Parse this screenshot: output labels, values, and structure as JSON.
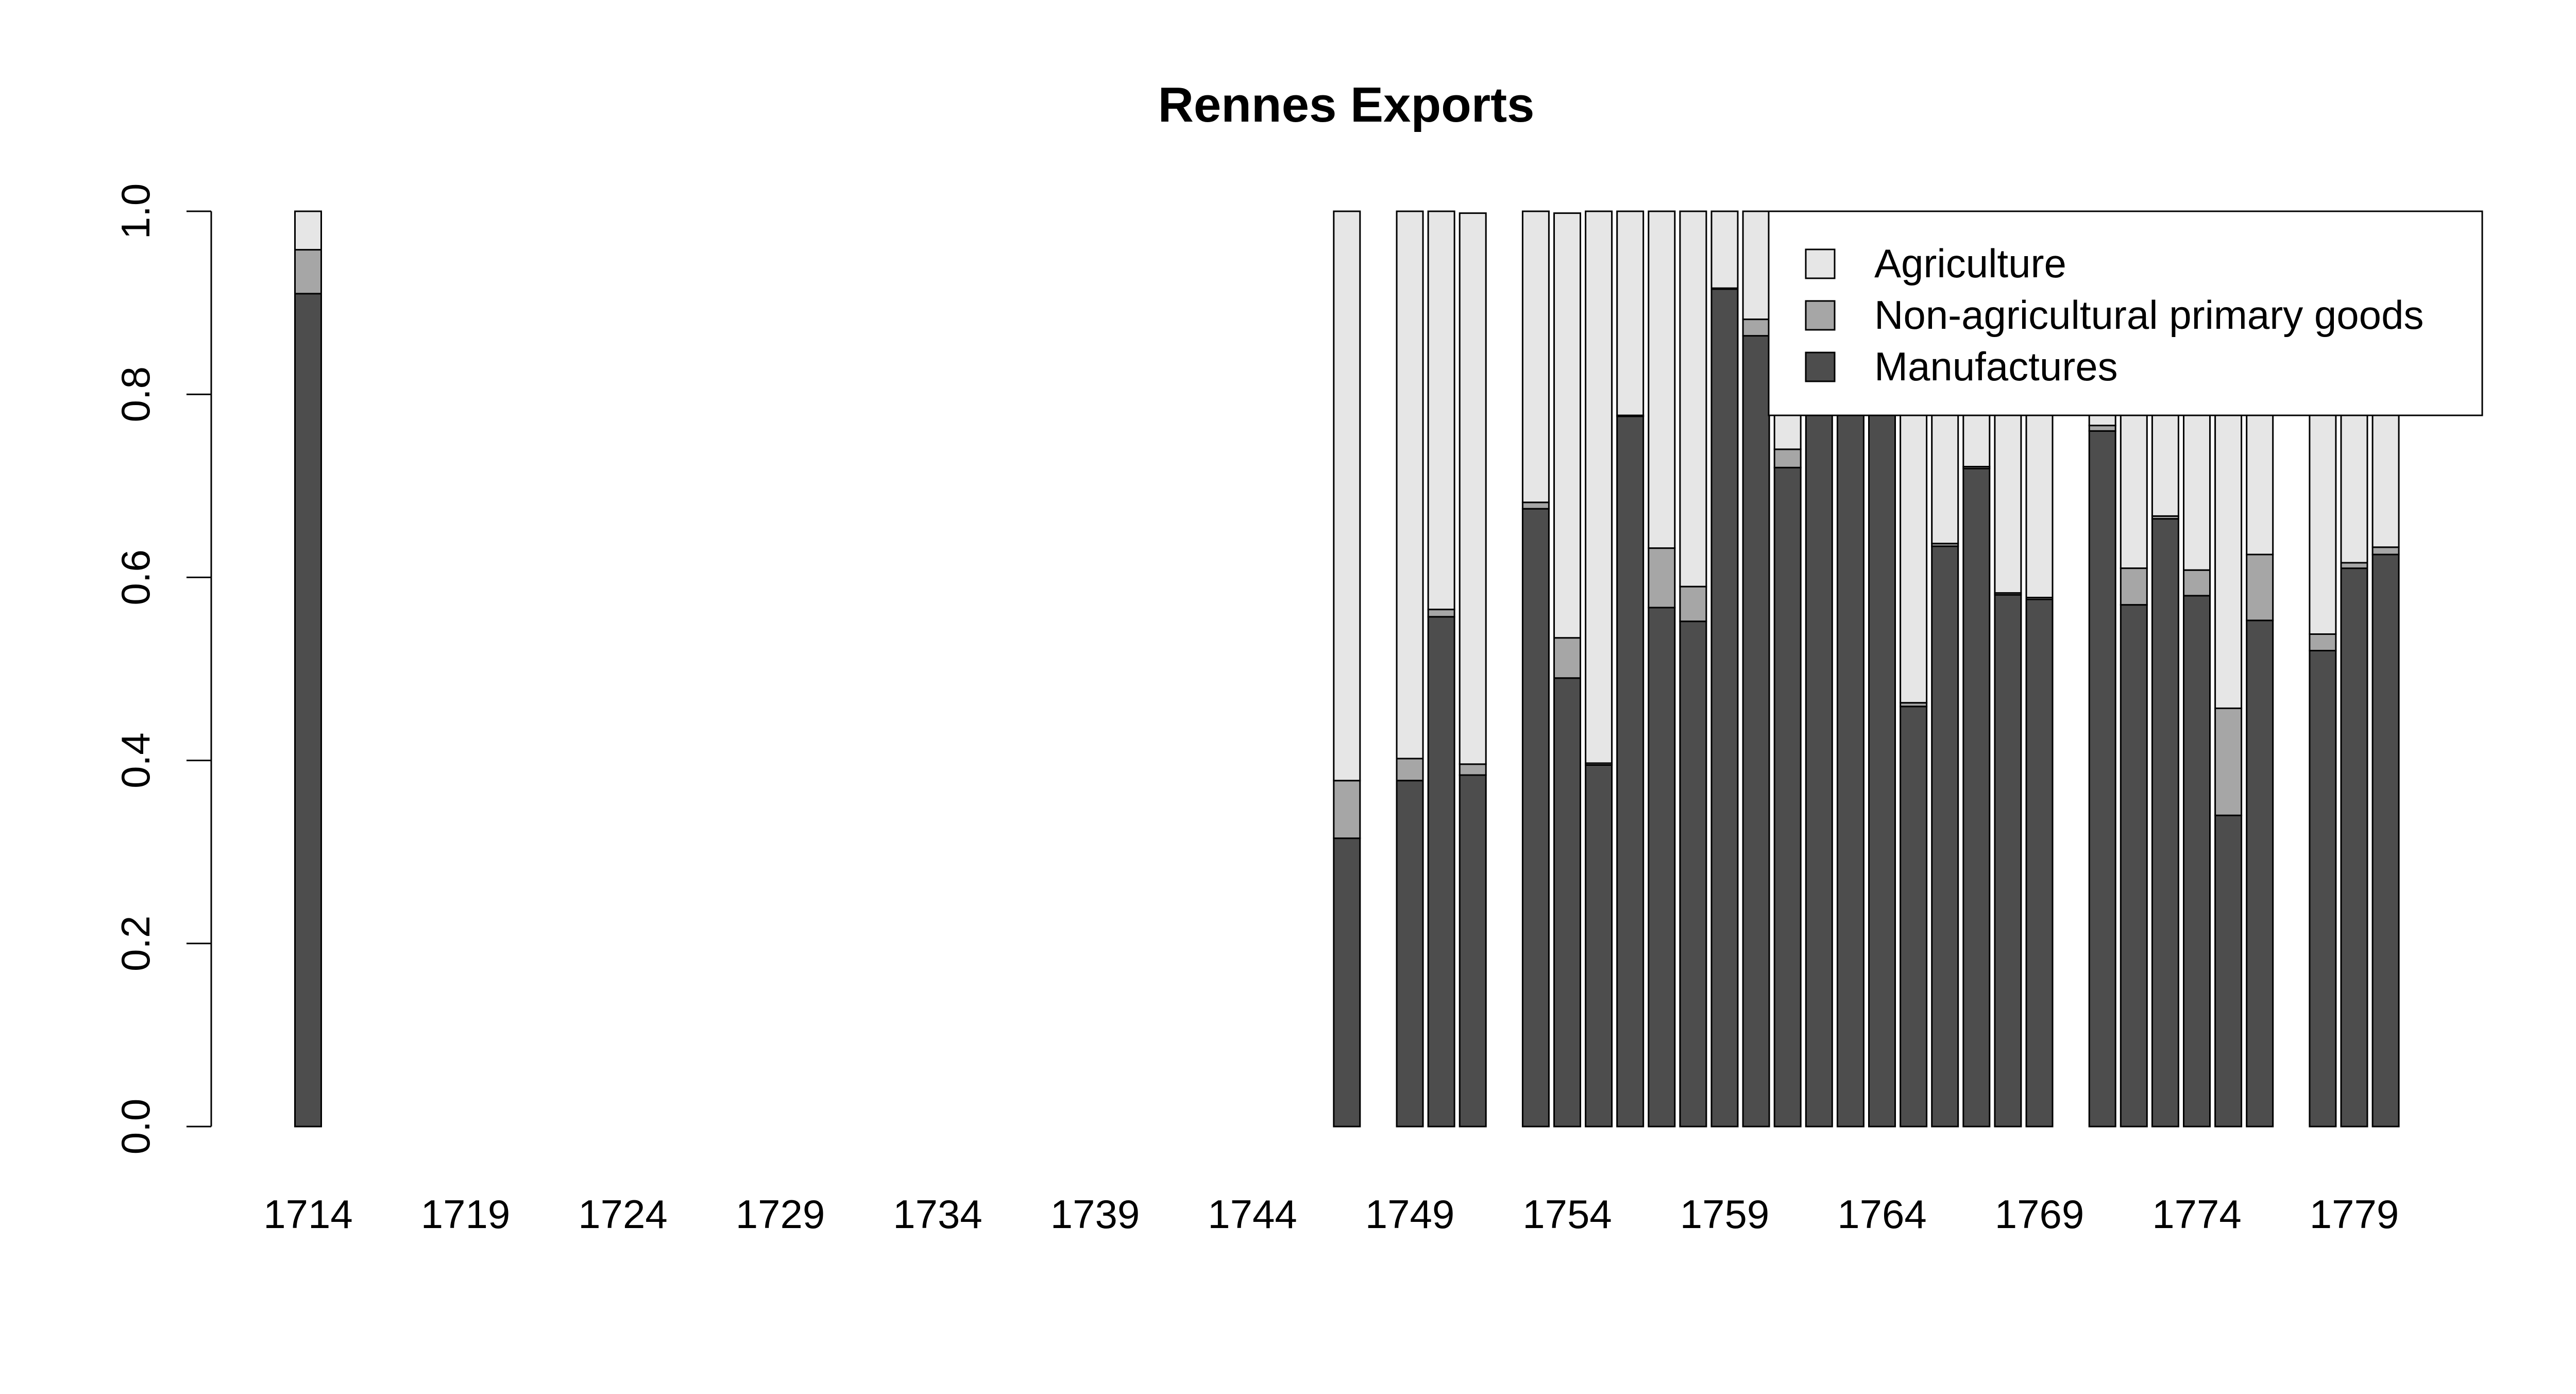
{
  "chart_data": {
    "type": "bar",
    "stacked": true,
    "title": "Rennes Exports",
    "xlabel": "",
    "ylabel": "",
    "ylim": [
      0,
      1
    ],
    "yticks": [
      "0.0",
      "0.2",
      "0.4",
      "0.6",
      "0.8",
      "1.0"
    ],
    "xticks": [
      "1714",
      "1719",
      "1724",
      "1729",
      "1734",
      "1739",
      "1744",
      "1749",
      "1754",
      "1759",
      "1764",
      "1769",
      "1774",
      "1779"
    ],
    "legend_position": "top-right",
    "grid": false,
    "years": [
      1714,
      1715,
      1716,
      1717,
      1718,
      1719,
      1720,
      1721,
      1722,
      1723,
      1724,
      1725,
      1726,
      1727,
      1728,
      1729,
      1730,
      1731,
      1732,
      1733,
      1734,
      1735,
      1736,
      1737,
      1738,
      1739,
      1740,
      1741,
      1742,
      1743,
      1744,
      1745,
      1746,
      1747,
      1748,
      1749,
      1750,
      1751,
      1752,
      1753,
      1754,
      1755,
      1756,
      1757,
      1758,
      1759,
      1760,
      1761,
      1762,
      1763,
      1764,
      1765,
      1766,
      1767,
      1768,
      1769,
      1770,
      1771,
      1772,
      1773,
      1774,
      1775,
      1776,
      1777,
      1778,
      1779,
      1780
    ],
    "series": [
      {
        "name": "Manufactures",
        "color": "#4d4d4d",
        "values": [
          0.91,
          null,
          null,
          null,
          null,
          null,
          null,
          null,
          null,
          null,
          null,
          null,
          null,
          null,
          null,
          null,
          null,
          null,
          null,
          null,
          null,
          null,
          null,
          null,
          null,
          null,
          null,
          null,
          null,
          null,
          null,
          null,
          null,
          0.315,
          null,
          0.378,
          0.557,
          0.384,
          null,
          0.675,
          0.49,
          0.395,
          0.776,
          0.567,
          0.552,
          0.915,
          0.864,
          0.72,
          0.96,
          0.97,
          0.96,
          0.459,
          0.634,
          0.719,
          0.581,
          0.576,
          null,
          0.76,
          0.57,
          0.664,
          0.58,
          0.34,
          0.553,
          null,
          0.52,
          0.61,
          0.625
        ]
      },
      {
        "name": "Non-agricultural primary goods",
        "color": "#a6a6a6",
        "values": [
          0.048,
          null,
          null,
          null,
          null,
          null,
          null,
          null,
          null,
          null,
          null,
          null,
          null,
          null,
          null,
          null,
          null,
          null,
          null,
          null,
          null,
          null,
          null,
          null,
          null,
          null,
          null,
          null,
          null,
          null,
          null,
          null,
          null,
          0.063,
          null,
          0.024,
          0.008,
          0.012,
          null,
          0.007,
          0.044,
          0.002,
          0.001,
          0.065,
          0.038,
          0.001,
          0.018,
          0.02,
          0.01,
          0.01,
          0.01,
          0.004,
          0.003,
          0.002,
          0.002,
          0.002,
          null,
          0.006,
          0.04,
          0.003,
          0.028,
          0.117,
          0.072,
          null,
          0.018,
          0.006,
          0.008
        ]
      },
      {
        "name": "Agriculture",
        "color": "#e6e6e6",
        "values": [
          0.042,
          null,
          null,
          null,
          null,
          null,
          null,
          null,
          null,
          null,
          null,
          null,
          null,
          null,
          null,
          null,
          null,
          null,
          null,
          null,
          null,
          null,
          null,
          null,
          null,
          null,
          null,
          null,
          null,
          null,
          null,
          null,
          null,
          0.622,
          null,
          0.598,
          0.435,
          0.602,
          null,
          0.318,
          0.464,
          0.603,
          0.223,
          0.368,
          0.41,
          0.084,
          0.118,
          0.26,
          0.03,
          0.02,
          0.03,
          0.537,
          0.363,
          0.279,
          0.417,
          0.422,
          null,
          0.234,
          0.39,
          0.333,
          0.392,
          0.543,
          0.375,
          null,
          0.462,
          0.384,
          0.367
        ]
      }
    ]
  }
}
